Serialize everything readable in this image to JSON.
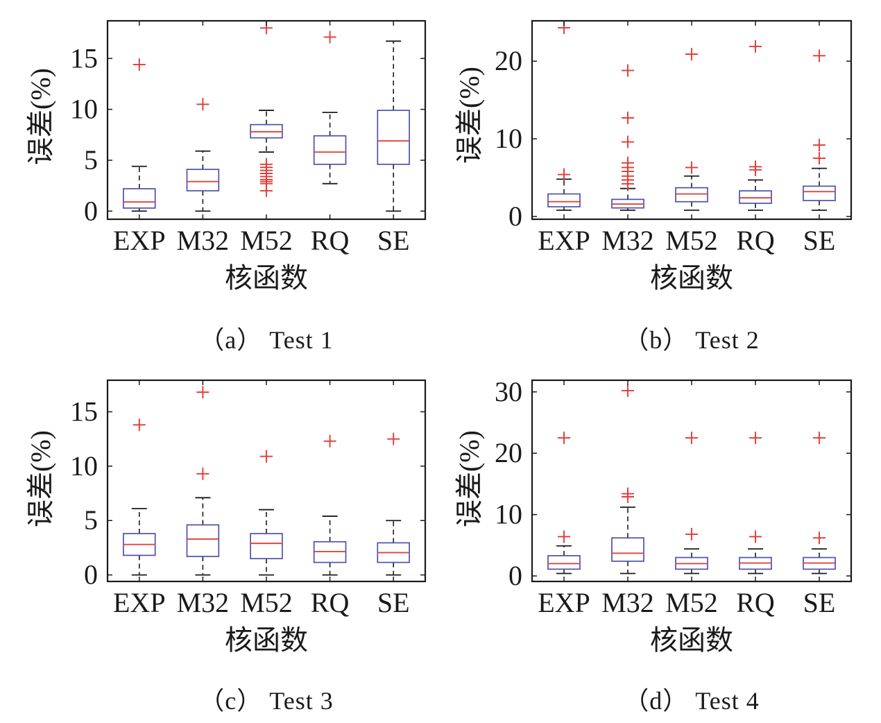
{
  "colors": {
    "box": "#4f4fae",
    "median": "#e4433c",
    "whisker": "#1a1a1a",
    "outlier": "#e23a34",
    "axis": "#1a1a1a"
  },
  "chart_data": [
    {
      "type": "box",
      "title": "（a） Test 1",
      "xlabel": "核函数",
      "ylabel": "误差(%)",
      "categories": [
        "EXP",
        "M32",
        "M52",
        "RQ",
        "SE"
      ],
      "ylim": [
        -0.8,
        18.7
      ],
      "yticks": [
        0,
        5,
        10,
        15
      ],
      "grid": false,
      "boxes": [
        {
          "q1": 0.3,
          "median": 0.9,
          "q3": 2.2,
          "whisker_low": 0,
          "whisker_high": 4.4,
          "outliers": [
            14.4
          ]
        },
        {
          "q1": 2.0,
          "median": 2.9,
          "q3": 4.1,
          "whisker_low": 0,
          "whisker_high": 5.9,
          "outliers": [
            10.5
          ]
        },
        {
          "q1": 7.2,
          "median": 7.8,
          "q3": 8.5,
          "whisker_low": 5.8,
          "whisker_high": 9.9,
          "outliers": [
            2.0,
            2.7,
            2.9,
            3.1,
            3.4,
            3.7,
            4.0,
            4.3,
            4.6,
            18.0
          ]
        },
        {
          "q1": 4.6,
          "median": 5.8,
          "q3": 7.4,
          "whisker_low": 2.7,
          "whisker_high": 9.7,
          "outliers": [
            17.1
          ]
        },
        {
          "q1": 4.6,
          "median": 6.9,
          "q3": 9.9,
          "whisker_low": 0,
          "whisker_high": 16.7,
          "outliers": []
        }
      ]
    },
    {
      "type": "box",
      "title": "（b） Test 2",
      "xlabel": "核函数",
      "ylabel": "误差(%)",
      "categories": [
        "EXP",
        "M32",
        "M52",
        "RQ",
        "SE"
      ],
      "ylim": [
        -0.36,
        25.2
      ],
      "yticks": [
        0,
        10,
        20
      ],
      "grid": false,
      "boxes": [
        {
          "q1": 1.25,
          "median": 1.9,
          "q3": 2.9,
          "whisker_low": 0.8,
          "whisker_high": 4.8,
          "outliers": [
            5.4,
            24.3
          ]
        },
        {
          "q1": 1.1,
          "median": 1.6,
          "q3": 2.2,
          "whisker_low": 0.8,
          "whisker_high": 3.6,
          "outliers": [
            4.2,
            4.7,
            5.2,
            5.8,
            6.3,
            6.9,
            9.6,
            12.7,
            18.8
          ]
        },
        {
          "q1": 1.9,
          "median": 2.9,
          "q3": 3.7,
          "whisker_low": 0.8,
          "whisker_high": 5.2,
          "outliers": [
            6.3,
            20.9
          ]
        },
        {
          "q1": 1.7,
          "median": 2.4,
          "q3": 3.3,
          "whisker_low": 0.8,
          "whisker_high": 4.7,
          "outliers": [
            6.0,
            6.4,
            21.9
          ]
        },
        {
          "q1": 2.05,
          "median": 3.2,
          "q3": 3.9,
          "whisker_low": 0.8,
          "whisker_high": 6.2,
          "outliers": [
            7.5,
            9.2,
            20.7
          ]
        }
      ]
    },
    {
      "type": "box",
      "title": "（c） Test 3",
      "xlabel": "核函数",
      "ylabel": "误差(%)",
      "categories": [
        "EXP",
        "M32",
        "M52",
        "RQ",
        "SE"
      ],
      "ylim": [
        -0.6,
        17.9
      ],
      "yticks": [
        0,
        5,
        10,
        15
      ],
      "grid": false,
      "boxes": [
        {
          "q1": 1.8,
          "median": 2.8,
          "q3": 3.8,
          "whisker_low": 0,
          "whisker_high": 6.1,
          "outliers": [
            13.8
          ]
        },
        {
          "q1": 1.7,
          "median": 3.3,
          "q3": 4.6,
          "whisker_low": 0,
          "whisker_high": 7.1,
          "outliers": [
            9.3,
            16.8
          ]
        },
        {
          "q1": 1.5,
          "median": 2.9,
          "q3": 3.8,
          "whisker_low": 0,
          "whisker_high": 6.0,
          "outliers": [
            10.9
          ]
        },
        {
          "q1": 1.15,
          "median": 2.15,
          "q3": 3.05,
          "whisker_low": 0,
          "whisker_high": 5.4,
          "outliers": [
            12.3
          ]
        },
        {
          "q1": 1.15,
          "median": 2.05,
          "q3": 2.95,
          "whisker_low": 0,
          "whisker_high": 5.0,
          "outliers": [
            12.5
          ]
        }
      ]
    },
    {
      "type": "box",
      "title": "（d） Test 4",
      "xlabel": "核函数",
      "ylabel": "误差(%)",
      "categories": [
        "EXP",
        "M32",
        "M52",
        "RQ",
        "SE"
      ],
      "ylim": [
        -0.9,
        31.9
      ],
      "yticks": [
        0,
        10,
        20,
        30
      ],
      "grid": false,
      "boxes": [
        {
          "q1": 1.1,
          "median": 2.0,
          "q3": 3.3,
          "whisker_low": 0.4,
          "whisker_high": 4.9,
          "outliers": [
            6.4,
            22.5
          ]
        },
        {
          "q1": 2.4,
          "median": 3.7,
          "q3": 6.2,
          "whisker_low": 0.4,
          "whisker_high": 11.2,
          "outliers": [
            12.9,
            13.4,
            30.2
          ]
        },
        {
          "q1": 1.1,
          "median": 2.0,
          "q3": 3.0,
          "whisker_low": 0.4,
          "whisker_high": 4.4,
          "outliers": [
            6.8,
            22.5
          ]
        },
        {
          "q1": 1.1,
          "median": 2.1,
          "q3": 3.0,
          "whisker_low": 0.4,
          "whisker_high": 4.4,
          "outliers": [
            6.4,
            22.5
          ]
        },
        {
          "q1": 1.1,
          "median": 2.1,
          "q3": 3.0,
          "whisker_low": 0.4,
          "whisker_high": 4.4,
          "outliers": [
            6.2,
            22.5
          ]
        }
      ]
    }
  ]
}
